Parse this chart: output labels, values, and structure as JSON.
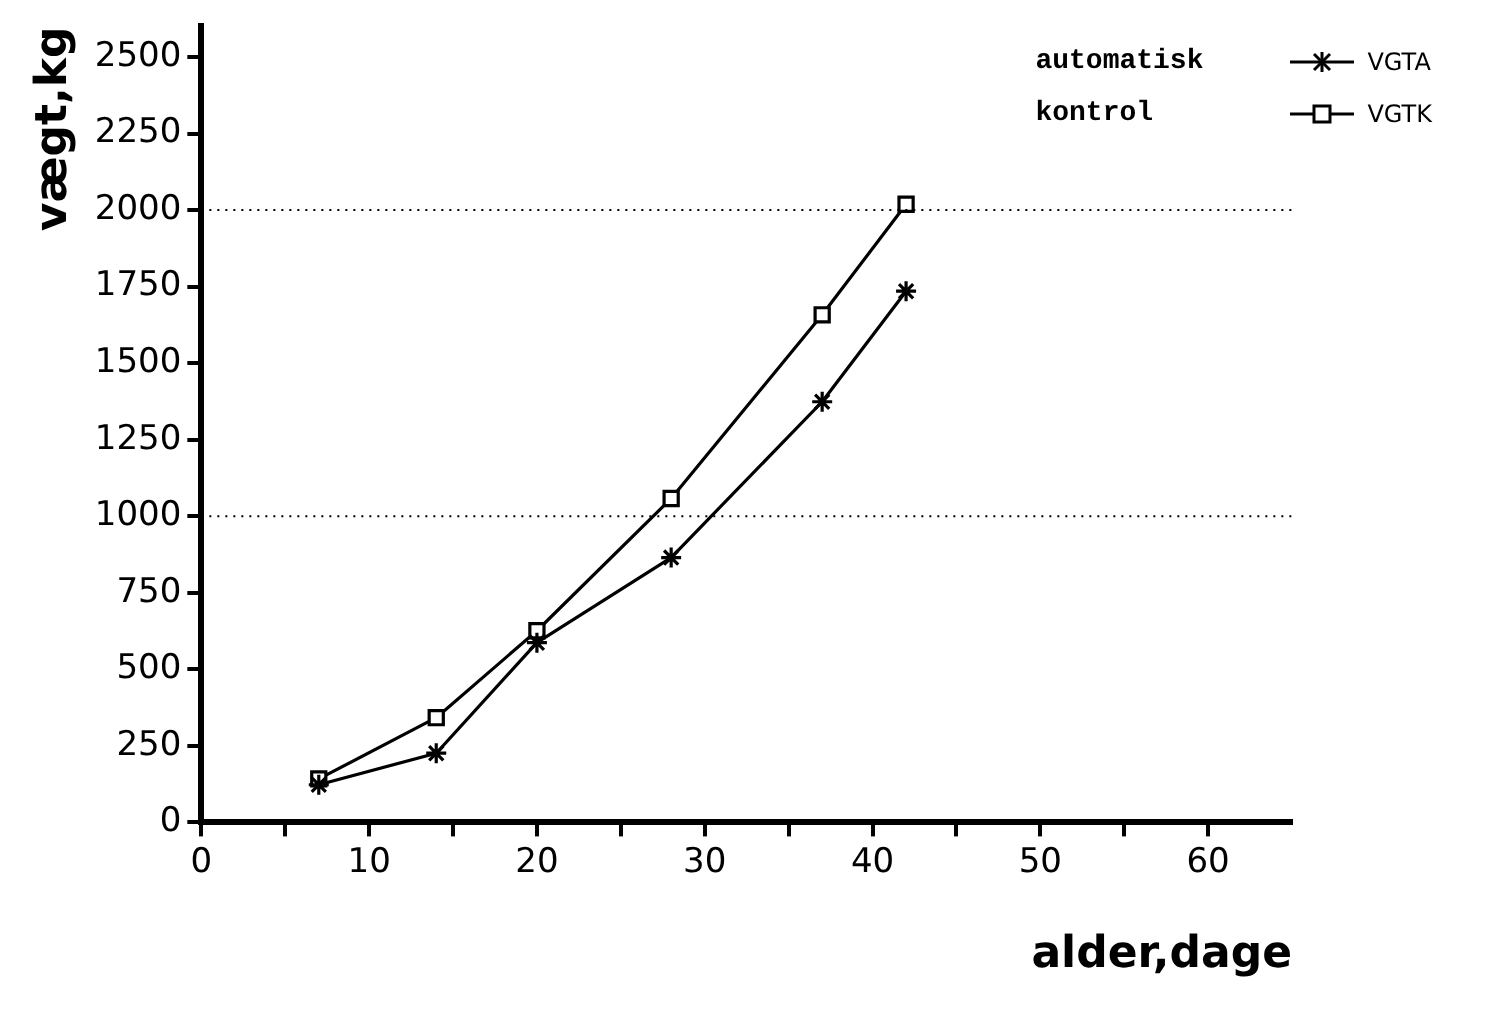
{
  "chart_data": {
    "type": "line",
    "xlabel": "alder,dage",
    "ylabel": "vægt,kg",
    "annotations": [
      "automatisk",
      "kontrol"
    ],
    "xlim": [
      0,
      65
    ],
    "xticks": [
      0,
      {
        "value": 5,
        "label": null
      },
      10,
      {
        "value": 15,
        "label": null
      },
      20,
      {
        "value": 25,
        "label": null
      },
      30,
      {
        "value": 35,
        "label": null
      },
      40,
      {
        "value": 45,
        "label": null
      },
      50,
      {
        "value": 55,
        "label": null
      },
      60
    ],
    "ylim": [
      0,
      2600
    ],
    "yticks": [
      0,
      250,
      500,
      750,
      1000,
      1250,
      1500,
      1750,
      2000,
      2250,
      2500
    ],
    "grid": false,
    "legend": "top right",
    "line_style": "solid",
    "ref_lines": [
      {
        "axis": "y",
        "value": 1000,
        "color": "#000000",
        "line_style": "dotted"
      },
      {
        "axis": "y",
        "value": 2000,
        "color": "#000000",
        "line_style": "dotted"
      }
    ],
    "series": [
      {
        "name": "VGTA",
        "color": "#000000",
        "marker": "cross",
        "x": [
          7,
          14,
          20,
          28,
          37,
          42
        ],
        "values": [
          123,
          226,
          587,
          865,
          1374,
          1735
        ]
      },
      {
        "name": "VGTK",
        "color": "#000000",
        "marker": "square",
        "x": [
          7,
          14,
          20,
          28,
          37,
          42
        ],
        "values": [
          142,
          342,
          626,
          1058,
          1658,
          2019
        ]
      }
    ]
  }
}
